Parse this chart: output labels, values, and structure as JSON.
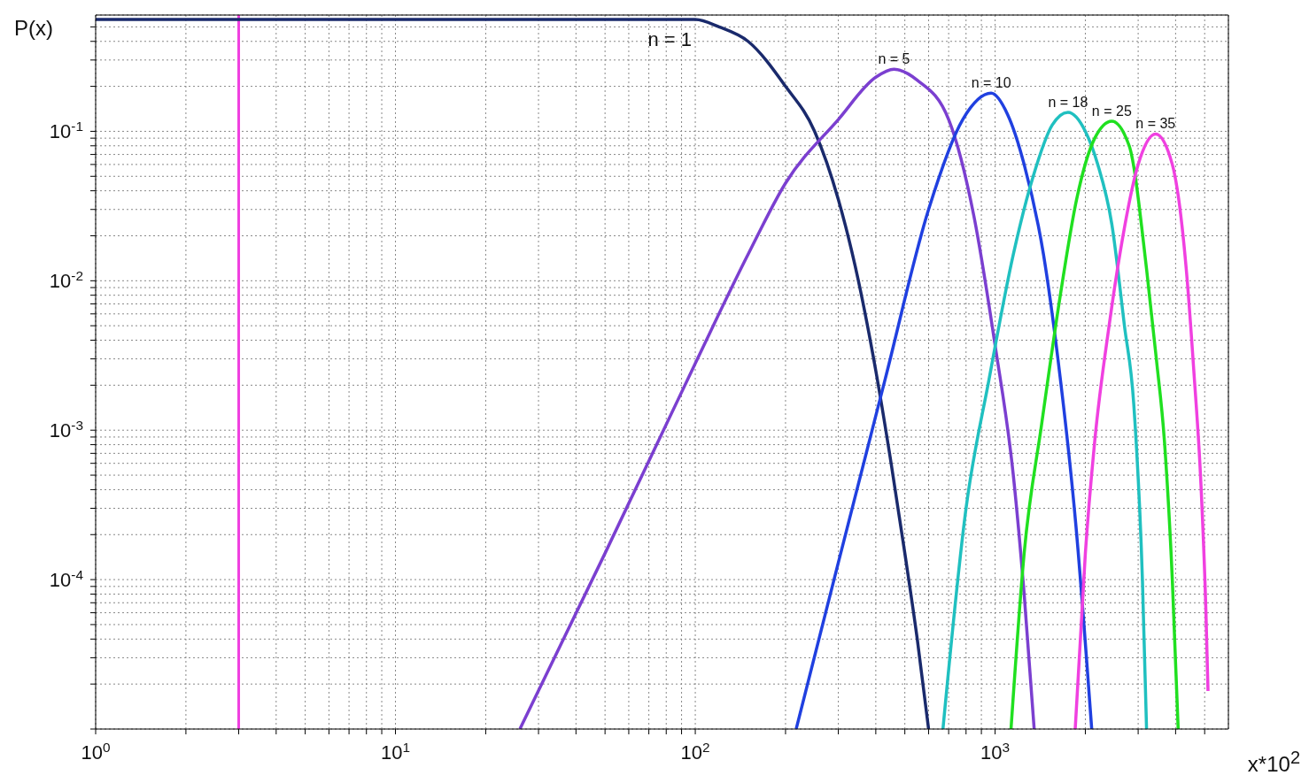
{
  "chart_data": {
    "type": "line",
    "xlabel": "x*10$^{2}$",
    "ylabel": "P(x)",
    "log": "xy",
    "grid": true,
    "marker": "none",
    "line_style": "solid",
    "xlim": [
      1,
      6000
    ],
    "ylim": [
      1e-05,
      0.6
    ],
    "xticks": [
      {
        "value": 1,
        "label": "10$^{0}$"
      },
      {
        "value": 2,
        "label": null
      },
      {
        "value": 3,
        "label": null
      },
      {
        "value": 4,
        "label": null
      },
      {
        "value": 5,
        "label": null
      },
      {
        "value": 6,
        "label": null
      },
      {
        "value": 7,
        "label": null
      },
      {
        "value": 8,
        "label": null
      },
      {
        "value": 9,
        "label": null
      },
      {
        "value": 10,
        "label": "10$^{1}$"
      },
      {
        "value": 20,
        "label": null
      },
      {
        "value": 30,
        "label": null
      },
      {
        "value": 40,
        "label": null
      },
      {
        "value": 50,
        "label": null
      },
      {
        "value": 60,
        "label": null
      },
      {
        "value": 70,
        "label": null
      },
      {
        "value": 80,
        "label": null
      },
      {
        "value": 90,
        "label": null
      },
      {
        "value": 100,
        "label": "10$^{2}$"
      },
      {
        "value": 200,
        "label": null
      },
      {
        "value": 300,
        "label": null
      },
      {
        "value": 400,
        "label": null
      },
      {
        "value": 500,
        "label": null
      },
      {
        "value": 600,
        "label": null
      },
      {
        "value": 700,
        "label": null
      },
      {
        "value": 800,
        "label": null
      },
      {
        "value": 900,
        "label": null
      },
      {
        "value": 1000,
        "label": "10$^{3}$"
      },
      {
        "value": 2000,
        "label": null
      },
      {
        "value": 3000,
        "label": null
      },
      {
        "value": 4000,
        "label": null
      },
      {
        "value": 5000,
        "label": null
      }
    ],
    "yticks": [
      {
        "value": 1e-05,
        "label": null
      },
      {
        "value": 2e-05,
        "label": null
      },
      {
        "value": 3e-05,
        "label": null
      },
      {
        "value": 4e-05,
        "label": null
      },
      {
        "value": 5e-05,
        "label": null
      },
      {
        "value": 6e-05,
        "label": null
      },
      {
        "value": 7e-05,
        "label": null
      },
      {
        "value": 8e-05,
        "label": null
      },
      {
        "value": 9e-05,
        "label": null
      },
      {
        "value": 0.0001,
        "label": "10$^{-4}$"
      },
      {
        "value": 0.0002,
        "label": null
      },
      {
        "value": 0.0003,
        "label": null
      },
      {
        "value": 0.0004,
        "label": null
      },
      {
        "value": 0.0005,
        "label": null
      },
      {
        "value": 0.0006,
        "label": null
      },
      {
        "value": 0.0007,
        "label": null
      },
      {
        "value": 0.0008,
        "label": null
      },
      {
        "value": 0.0009,
        "label": null
      },
      {
        "value": 0.001,
        "label": "10$^{-3}$"
      },
      {
        "value": 0.002,
        "label": null
      },
      {
        "value": 0.003,
        "label": null
      },
      {
        "value": 0.004,
        "label": null
      },
      {
        "value": 0.005,
        "label": null
      },
      {
        "value": 0.006,
        "label": null
      },
      {
        "value": 0.007,
        "label": null
      },
      {
        "value": 0.008,
        "label": null
      },
      {
        "value": 0.009,
        "label": null
      },
      {
        "value": 0.01,
        "label": "10$^{-2}$"
      },
      {
        "value": 0.02,
        "label": null
      },
      {
        "value": 0.03,
        "label": null
      },
      {
        "value": 0.04,
        "label": null
      },
      {
        "value": 0.05,
        "label": null
      },
      {
        "value": 0.06,
        "label": null
      },
      {
        "value": 0.07,
        "label": null
      },
      {
        "value": 0.08,
        "label": null
      },
      {
        "value": 0.09,
        "label": null
      },
      {
        "value": 0.1,
        "label": "10$^{-1}$"
      },
      {
        "value": 0.2,
        "label": null
      },
      {
        "value": 0.3,
        "label": null
      },
      {
        "value": 0.4,
        "label": null
      },
      {
        "value": 0.5,
        "label": null
      }
    ],
    "ref_lines": [
      {
        "axis": "x",
        "value": 3,
        "color": "#f040e0"
      }
    ],
    "series": [
      {
        "name": "n = 1",
        "color": "#1a2a6c",
        "x": [
          1,
          100,
          120,
          150,
          200,
          250,
          300,
          350,
          400,
          450,
          500,
          550,
          600
        ],
        "values": [
          0.56,
          0.56,
          0.5,
          0.4,
          0.2,
          0.1,
          0.035,
          0.01,
          0.0025,
          0.0006,
          0.00015,
          4e-05,
          1e-05
        ]
      },
      {
        "name": "n = 5",
        "color": "#7b3fd0",
        "x": [
          26,
          50,
          100,
          150,
          200,
          300,
          400,
          460,
          550,
          700,
          850,
          1000,
          1150,
          1250,
          1350
        ],
        "values": [
          1e-05,
          0.00015,
          0.0028,
          0.015,
          0.045,
          0.12,
          0.23,
          0.26,
          0.22,
          0.12,
          0.027,
          0.0037,
          0.0005,
          8e-05,
          1e-05
        ]
      },
      {
        "name": "n = 10",
        "color": "#2040e0",
        "x": [
          217,
          300,
          430,
          600,
          780,
          970,
          1100,
          1250,
          1450,
          1620,
          1860,
          2100
        ],
        "values": [
          1e-05,
          0.00013,
          0.0022,
          0.03,
          0.12,
          0.18,
          0.13,
          0.06,
          0.015,
          0.003,
          0.00023,
          1e-05
        ]
      },
      {
        "name": "n = 18",
        "color": "#20c0c0",
        "x": [
          670,
          800,
          955,
          1150,
          1340,
          1550,
          1750,
          2000,
          2200,
          2450,
          2700,
          2900,
          3100,
          3200
        ],
        "values": [
          1e-05,
          0.0003,
          0.0022,
          0.015,
          0.05,
          0.11,
          0.134,
          0.1,
          0.06,
          0.024,
          0.005,
          0.0015,
          0.0001,
          1e-05
        ]
      },
      {
        "name": "n = 25",
        "color": "#20e020",
        "x": [
          1130,
          1250,
          1430,
          1650,
          1870,
          2150,
          2450,
          2800,
          3200,
          3450,
          3670,
          3900,
          4080
        ],
        "values": [
          1e-05,
          0.00015,
          0.0011,
          0.008,
          0.035,
          0.09,
          0.117,
          0.08,
          0.012,
          0.003,
          0.00085,
          0.0001,
          1e-05
        ]
      },
      {
        "name": "n = 35",
        "color": "#f040e0",
        "x": [
          1850,
          2000,
          2150,
          2400,
          2620,
          3000,
          3430,
          3900,
          4340,
          4600,
          4860,
          5050,
          5130
        ],
        "values": [
          1e-05,
          0.00015,
          0.00085,
          0.005,
          0.016,
          0.06,
          0.096,
          0.06,
          0.012,
          0.0025,
          0.00043,
          6e-05,
          1.8e-05
        ]
      }
    ]
  }
}
